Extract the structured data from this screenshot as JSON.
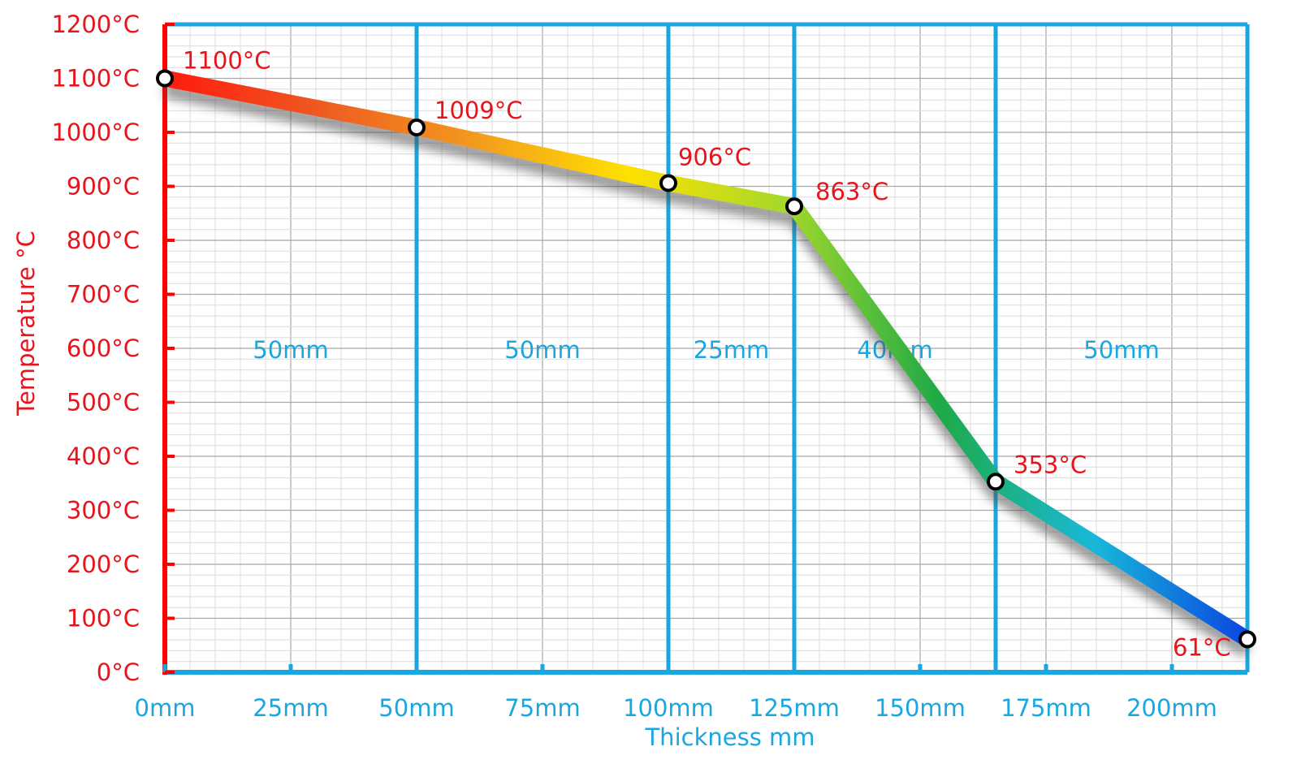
{
  "chart_data": {
    "type": "line",
    "title": "",
    "xlabel": "Thickness mm",
    "ylabel": "Temperature  °C",
    "xlim": [
      0,
      215
    ],
    "ylim": [
      0,
      1200
    ],
    "x_ticks": [
      0,
      25,
      50,
      75,
      100,
      125,
      150,
      175,
      200
    ],
    "x_tick_labels": [
      "0mm",
      "25mm",
      "50mm",
      "75mm",
      "100mm",
      "125mm",
      "150mm",
      "175mm",
      "200mm"
    ],
    "y_ticks": [
      0,
      100,
      200,
      300,
      400,
      500,
      600,
      700,
      800,
      900,
      1000,
      1100,
      1200
    ],
    "y_tick_labels": [
      "0°C",
      "100°C",
      "200°C",
      "300°C",
      "400°C",
      "500°C",
      "600°C",
      "700°C",
      "800°C",
      "900°C",
      "1000°C",
      "1100°C",
      "1200°C"
    ],
    "grid": true,
    "layer_boundaries": [
      50,
      100,
      125,
      165,
      215
    ],
    "layers": [
      {
        "label": "50mm",
        "from": 0,
        "to": 50
      },
      {
        "label": "50mm",
        "from": 50,
        "to": 100
      },
      {
        "label": "25mm",
        "from": 100,
        "to": 125
      },
      {
        "label": "40mm",
        "from": 125,
        "to": 165
      },
      {
        "label": "50mm",
        "from": 165,
        "to": 215
      }
    ],
    "series": [
      {
        "points": [
          {
            "x": 0,
            "y": 1100,
            "label": "1100°C"
          },
          {
            "x": 50,
            "y": 1009,
            "label": "1009°C"
          },
          {
            "x": 100,
            "y": 906,
            "label": "906°C"
          },
          {
            "x": 125,
            "y": 863,
            "label": "863°C"
          },
          {
            "x": 165,
            "y": 353,
            "label": "353°C"
          },
          {
            "x": 215,
            "y": 61,
            "label": "61°C"
          }
        ]
      }
    ],
    "colors": {
      "y_axis": "#ff0000",
      "x_axis": "#1aa7e0",
      "tick_label_y": "#e8141c",
      "tick_label_x": "#1aa7e0",
      "grid_minor": "#dcdcdc",
      "grid_major": "#a8a8a8",
      "point_label": "#e8141c",
      "layer_label": "#1aa7e0",
      "gradient": [
        "#ff1a0d",
        "#ee5a20",
        "#f39a1e",
        "#ffe100",
        "#a6d92a",
        "#1eaa46",
        "#18b9d9",
        "#0b45e0"
      ]
    }
  }
}
